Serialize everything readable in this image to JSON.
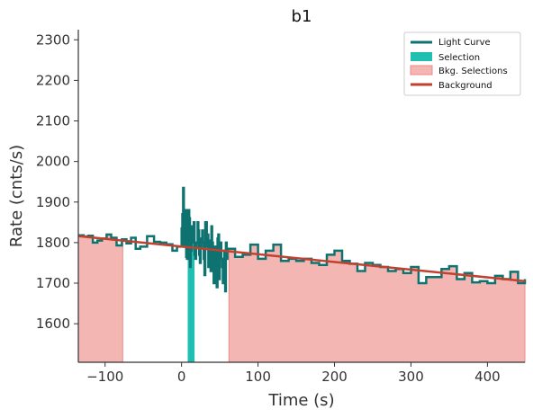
{
  "chart_data": {
    "type": "line",
    "title": "b1",
    "xlabel": "Time (s)",
    "ylabel": "Rate (cnts/s)",
    "xlim": [
      -135,
      449
    ],
    "ylim": [
      1505,
      2325
    ],
    "xticks": [
      -100,
      0,
      100,
      200,
      300,
      400
    ],
    "xtick_labels": [
      "−100",
      "0",
      "100",
      "200",
      "300",
      "400"
    ],
    "yticks": [
      1600,
      1700,
      1800,
      1900,
      2000,
      2100,
      2200,
      2300
    ],
    "ytick_labels": [
      "1600",
      "1700",
      "1800",
      "1900",
      "2000",
      "2100",
      "2200",
      "2300"
    ],
    "grid": false,
    "legend_position": "top-right",
    "legend": [
      "Light Curve",
      "Selection",
      "Bkg. Selections",
      "Background"
    ],
    "colors": {
      "light_curve": "#0e7370",
      "selection": "#21bfb2",
      "bkg_selections": "#f4b6b2",
      "bkg_selections_edge": "#ef8a84",
      "background": "#c2402e",
      "axes": "#333333"
    },
    "series": [
      {
        "name": "Light Curve",
        "x": [
          -135,
          -128,
          -122,
          -116,
          -110,
          -104,
          -98,
          -92,
          -85,
          -78,
          -72,
          -66,
          -60,
          -54,
          -45,
          -36,
          -28,
          -20,
          -12,
          -6,
          0,
          1,
          2,
          3,
          4,
          5,
          6,
          7,
          8,
          9,
          10,
          11,
          12,
          13,
          14,
          15,
          16,
          17,
          18,
          19,
          20,
          21,
          22,
          23,
          24,
          25,
          26,
          27,
          28,
          29,
          30,
          31,
          32,
          33,
          34,
          35,
          36,
          37,
          38,
          39,
          40,
          41,
          42,
          43,
          44,
          45,
          46,
          47,
          48,
          49,
          50,
          51,
          52,
          53,
          54,
          55,
          56,
          57,
          58,
          59,
          60,
          62,
          70,
          80,
          90,
          100,
          110,
          120,
          130,
          140,
          150,
          160,
          170,
          180,
          190,
          200,
          210,
          220,
          230,
          240,
          250,
          260,
          270,
          280,
          290,
          300,
          310,
          320,
          330,
          340,
          350,
          360,
          370,
          380,
          390,
          400,
          410,
          420,
          430,
          440,
          449
        ],
        "y": [
          1818,
          1815,
          1817,
          1800,
          1805,
          1810,
          1820,
          1812,
          1793,
          1808,
          1798,
          1812,
          1785,
          1790,
          1816,
          1802,
          1800,
          1796,
          1780,
          1790,
          1835,
          1870,
          1935,
          1790,
          1880,
          1880,
          1765,
          1760,
          1800,
          1880,
          1860,
          1740,
          1780,
          1840,
          1800,
          1830,
          1850,
          1770,
          1760,
          1790,
          1800,
          1850,
          1830,
          1770,
          1750,
          1790,
          1810,
          1830,
          1800,
          1760,
          1720,
          1850,
          1850,
          1790,
          1820,
          1740,
          1770,
          1805,
          1730,
          1840,
          1800,
          1770,
          1700,
          1790,
          1790,
          1750,
          1690,
          1810,
          1820,
          1710,
          1770,
          1800,
          1760,
          1740,
          1700,
          1720,
          1780,
          1680,
          1800,
          1760,
          1785,
          1785,
          1765,
          1770,
          1795,
          1760,
          1780,
          1795,
          1755,
          1760,
          1755,
          1760,
          1750,
          1745,
          1770,
          1780,
          1755,
          1748,
          1730,
          1750,
          1745,
          1740,
          1730,
          1735,
          1725,
          1740,
          1700,
          1715,
          1715,
          1735,
          1742,
          1710,
          1725,
          1702,
          1705,
          1700,
          1718,
          1710,
          1728,
          1700,
          1710
        ]
      },
      {
        "name": "Background",
        "x": [
          -135,
          449
        ],
        "y": [
          1816,
          1705
        ]
      }
    ],
    "selection_ranges": [
      [
        8,
        17
      ]
    ],
    "bkg_selection_ranges": [
      [
        -135,
        -77
      ],
      [
        62,
        449
      ]
    ]
  }
}
